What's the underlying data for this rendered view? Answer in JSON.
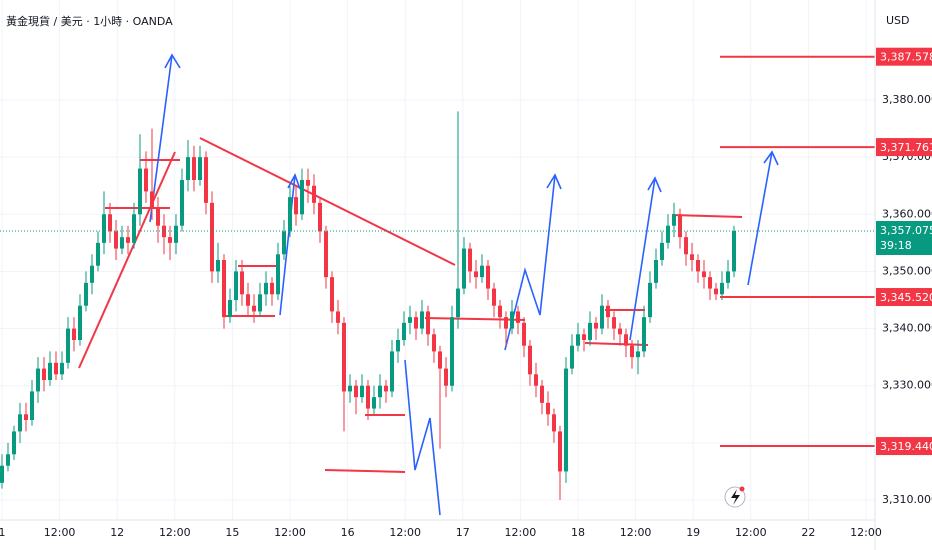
{
  "chart_data": {
    "type": "candlestick",
    "header": "黃金現貨 / 美元 · 1小時 · OANDA",
    "currency": "USD",
    "up_color": "#089981",
    "down_color": "#f23645",
    "level_color": "#f23645",
    "ylim": [
      3306.5,
      3397.5
    ],
    "yticks": [
      {
        "value": 3310,
        "label": "3,310.000"
      },
      {
        "value": 3320,
        "label": "3,320.000"
      },
      {
        "value": 3330,
        "label": "3,330.000"
      },
      {
        "value": 3340,
        "label": "3,340.000"
      },
      {
        "value": 3350,
        "label": "3,350.000"
      },
      {
        "value": 3360,
        "label": "3,360.000"
      },
      {
        "value": 3370,
        "label": "3,370.000"
      },
      {
        "value": 3380,
        "label": "3,380.000"
      }
    ],
    "xtick_labels": [
      "1",
      "12:00",
      "12",
      "12:00",
      "15",
      "12:00",
      "16",
      "12:00",
      "17",
      "12:00",
      "18",
      "12:00",
      "19",
      "12:00",
      "22",
      "12:00"
    ],
    "levels": [
      {
        "value": 3387.578,
        "label": "3,387.578"
      },
      {
        "value": 3371.761,
        "label": "3,371.761"
      },
      {
        "value": 3345.52,
        "label": "3,345.520"
      },
      {
        "value": 3319.44,
        "label": "3,319.440"
      }
    ],
    "last": {
      "value": 3357.075,
      "label": "3,357.075",
      "countdown": "39:18"
    },
    "candles": [
      [
        3313,
        3318,
        3312,
        3316
      ],
      [
        3316,
        3320,
        3315,
        3318
      ],
      [
        3318,
        3323,
        3317,
        3322
      ],
      [
        3322,
        3327,
        3320,
        3325
      ],
      [
        3325,
        3327,
        3322,
        3324
      ],
      [
        3324,
        3331,
        3323,
        3329
      ],
      [
        3329,
        3335,
        3327,
        3333
      ],
      [
        3333,
        3335,
        3329,
        3331
      ],
      [
        3331,
        3336,
        3330,
        3334
      ],
      [
        3334,
        3336,
        3331,
        3332
      ],
      [
        3332,
        3336,
        3331,
        3334
      ],
      [
        3334,
        3342,
        3333,
        3340
      ],
      [
        3340,
        3342,
        3336,
        3338
      ],
      [
        3338,
        3346,
        3337,
        3344
      ],
      [
        3344,
        3350,
        3343,
        3348
      ],
      [
        3348,
        3353,
        3346,
        3351
      ],
      [
        3351,
        3357,
        3350,
        3355
      ],
      [
        3355,
        3364,
        3353,
        3360
      ],
      [
        3360,
        3362,
        3355,
        3357
      ],
      [
        3357,
        3359,
        3352,
        3354
      ],
      [
        3354,
        3358,
        3353,
        3356
      ],
      [
        3356,
        3358,
        3353,
        3355
      ],
      [
        3355,
        3362,
        3354,
        3360
      ],
      [
        3360,
        3374,
        3358,
        3368
      ],
      [
        3368,
        3371,
        3362,
        3364
      ],
      [
        3364,
        3375,
        3359,
        3361
      ],
      [
        3361,
        3363,
        3355,
        3358
      ],
      [
        3358,
        3360,
        3353,
        3356
      ],
      [
        3356,
        3358,
        3352,
        3355
      ],
      [
        3355,
        3360,
        3353,
        3358
      ],
      [
        3358,
        3368,
        3357,
        3366
      ],
      [
        3366,
        3373,
        3364,
        3370
      ],
      [
        3370,
        3372,
        3364,
        3366
      ],
      [
        3366,
        3372,
        3365,
        3370
      ],
      [
        3370,
        3371,
        3360,
        3362
      ],
      [
        3362,
        3364,
        3348,
        3350
      ],
      [
        3350,
        3355,
        3348,
        3352
      ],
      [
        3352,
        3353,
        3340,
        3342
      ],
      [
        3342,
        3347,
        3341,
        3345
      ],
      [
        3345,
        3352,
        3343,
        3350
      ],
      [
        3350,
        3352,
        3344,
        3346
      ],
      [
        3346,
        3348,
        3342,
        3344
      ],
      [
        3344,
        3346,
        3341,
        3343
      ],
      [
        3343,
        3348,
        3342,
        3346
      ],
      [
        3346,
        3350,
        3344,
        3348
      ],
      [
        3348,
        3349,
        3344,
        3346
      ],
      [
        3346,
        3355,
        3345,
        3353
      ],
      [
        3353,
        3359,
        3352,
        3357
      ],
      [
        3357,
        3365,
        3356,
        3363
      ],
      [
        3363,
        3365,
        3358,
        3360
      ],
      [
        3360,
        3368,
        3359,
        3366
      ],
      [
        3366,
        3368,
        3362,
        3365
      ],
      [
        3365,
        3367,
        3360,
        3362
      ],
      [
        3362,
        3363,
        3355,
        3357
      ],
      [
        3357,
        3358,
        3347,
        3349
      ],
      [
        3349,
        3350,
        3341,
        3343
      ],
      [
        3343,
        3345,
        3339,
        3341
      ],
      [
        3341,
        3342,
        3322,
        3329
      ],
      [
        3329,
        3332,
        3327,
        3330
      ],
      [
        3330,
        3331,
        3325,
        3328
      ],
      [
        3328,
        3332,
        3327,
        3330
      ],
      [
        3330,
        3331,
        3324,
        3326
      ],
      [
        3326,
        3330,
        3325,
        3328
      ],
      [
        3328,
        3332,
        3326,
        3330
      ],
      [
        3330,
        3331,
        3327,
        3329
      ],
      [
        3329,
        3338,
        3328,
        3336
      ],
      [
        3336,
        3340,
        3334,
        3338
      ],
      [
        3338,
        3343,
        3337,
        3341
      ],
      [
        3341,
        3344,
        3339,
        3342
      ],
      [
        3342,
        3343,
        3338,
        3340
      ],
      [
        3340,
        3345,
        3339,
        3343
      ],
      [
        3343,
        3344,
        3337,
        3339
      ],
      [
        3339,
        3340,
        3334,
        3336
      ],
      [
        3336,
        3337,
        3319,
        3333
      ],
      [
        3333,
        3335,
        3328,
        3330
      ],
      [
        3330,
        3344,
        3329,
        3342
      ],
      [
        3342,
        3378,
        3340,
        3347
      ],
      [
        3347,
        3356,
        3346,
        3354
      ],
      [
        3354,
        3355,
        3348,
        3350
      ],
      [
        3350,
        3352,
        3347,
        3349
      ],
      [
        3349,
        3353,
        3348,
        3351
      ],
      [
        3351,
        3352,
        3345,
        3347
      ],
      [
        3347,
        3348,
        3342,
        3344
      ],
      [
        3344,
        3345,
        3340,
        3342
      ],
      [
        3342,
        3343,
        3337,
        3340
      ],
      [
        3340,
        3345,
        3339,
        3343
      ],
      [
        3343,
        3344,
        3339,
        3341
      ],
      [
        3341,
        3342,
        3335,
        3337
      ],
      [
        3337,
        3338,
        3330,
        3332
      ],
      [
        3332,
        3334,
        3328,
        3330
      ],
      [
        3330,
        3331,
        3325,
        3327
      ],
      [
        3327,
        3329,
        3323,
        3325
      ],
      [
        3325,
        3326,
        3320,
        3322
      ],
      [
        3322,
        3323,
        3310,
        3315
      ],
      [
        3315,
        3335,
        3313,
        3333
      ],
      [
        3333,
        3339,
        3332,
        3337
      ],
      [
        3337,
        3341,
        3336,
        3339
      ],
      [
        3339,
        3340,
        3336,
        3338
      ],
      [
        3338,
        3343,
        3337,
        3341
      ],
      [
        3341,
        3342,
        3338,
        3340
      ],
      [
        3340,
        3346,
        3339,
        3344
      ],
      [
        3344,
        3345,
        3340,
        3342
      ],
      [
        3342,
        3343,
        3338,
        3340
      ],
      [
        3340,
        3341,
        3337,
        3339
      ],
      [
        3339,
        3340,
        3335,
        3337
      ],
      [
        3337,
        3338,
        3333,
        3335
      ],
      [
        3335,
        3338,
        3332,
        3336
      ],
      [
        3336,
        3344,
        3335,
        3342
      ],
      [
        3342,
        3350,
        3341,
        3348
      ],
      [
        3348,
        3354,
        3347,
        3352
      ],
      [
        3352,
        3357,
        3351,
        3355
      ],
      [
        3355,
        3360,
        3354,
        3358
      ],
      [
        3358,
        3362,
        3356,
        3360
      ],
      [
        3360,
        3361,
        3354,
        3356
      ],
      [
        3356,
        3357,
        3351,
        3353
      ],
      [
        3353,
        3355,
        3350,
        3352
      ],
      [
        3352,
        3353,
        3348,
        3350
      ],
      [
        3350,
        3352,
        3347,
        3349
      ],
      [
        3349,
        3350,
        3345,
        3347
      ],
      [
        3347,
        3348,
        3345,
        3346
      ],
      [
        3346,
        3350,
        3345,
        3348
      ],
      [
        3348,
        3352,
        3347,
        3350
      ],
      [
        3350,
        3358,
        3349,
        3357.075
      ]
    ]
  }
}
